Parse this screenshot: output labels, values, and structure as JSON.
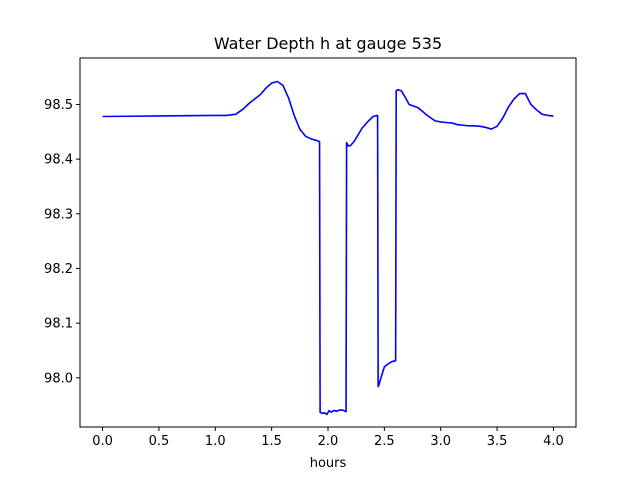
{
  "chart_data": {
    "type": "line",
    "title": "Water Depth h at gauge 535",
    "xlabel": "hours",
    "ylabel": "",
    "xlim": [
      -0.2,
      4.2
    ],
    "ylim": [
      97.91,
      98.585
    ],
    "xticks": [
      0.0,
      0.5,
      1.0,
      1.5,
      2.0,
      2.5,
      3.0,
      3.5,
      4.0
    ],
    "xtick_labels": [
      "0.0",
      "0.5",
      "1.0",
      "1.5",
      "2.0",
      "2.5",
      "3.0",
      "3.5",
      "4.0"
    ],
    "yticks": [
      98.0,
      98.1,
      98.2,
      98.3,
      98.4,
      98.5
    ],
    "ytick_labels": [
      "98.0",
      "98.1",
      "98.2",
      "98.3",
      "98.4",
      "98.5"
    ],
    "grid": false,
    "series": [
      {
        "color": "#0000ff",
        "x": [
          0.0,
          0.5,
          1.0,
          1.1,
          1.18,
          1.25,
          1.3,
          1.35,
          1.4,
          1.45,
          1.5,
          1.55,
          1.6,
          1.65,
          1.7,
          1.75,
          1.8,
          1.85,
          1.9,
          1.925,
          1.93,
          1.95,
          1.97,
          1.99,
          2.01,
          2.03,
          2.05,
          2.08,
          2.1,
          2.13,
          2.16,
          2.165,
          2.18,
          2.2,
          2.23,
          2.26,
          2.3,
          2.35,
          2.4,
          2.44,
          2.445,
          2.45,
          2.47,
          2.5,
          2.53,
          2.57,
          2.6,
          2.605,
          2.62,
          2.65,
          2.68,
          2.72,
          2.76,
          2.8,
          2.88,
          2.95,
          3.0,
          3.05,
          3.1,
          3.15,
          3.2,
          3.25,
          3.3,
          3.35,
          3.4,
          3.45,
          3.5,
          3.55,
          3.6,
          3.65,
          3.7,
          3.75,
          3.8,
          3.85,
          3.9,
          3.95,
          4.0
        ],
        "y": [
          98.478,
          98.479,
          98.48,
          98.48,
          98.482,
          98.492,
          98.502,
          98.51,
          98.518,
          98.53,
          98.539,
          98.542,
          98.535,
          98.512,
          98.48,
          98.455,
          98.442,
          98.437,
          98.434,
          98.432,
          97.937,
          97.935,
          97.936,
          97.933,
          97.94,
          97.937,
          97.94,
          97.939,
          97.941,
          97.941,
          97.938,
          98.43,
          98.424,
          98.425,
          98.432,
          98.442,
          98.456,
          98.468,
          98.478,
          98.48,
          97.984,
          97.986,
          98.0,
          98.02,
          98.025,
          98.03,
          98.031,
          98.525,
          98.527,
          98.525,
          98.515,
          98.5,
          98.497,
          98.494,
          98.48,
          98.47,
          98.468,
          98.467,
          98.466,
          98.463,
          98.462,
          98.461,
          98.461,
          98.46,
          98.458,
          98.455,
          98.46,
          98.475,
          98.495,
          98.51,
          98.52,
          98.52,
          98.5,
          98.49,
          98.482,
          98.48,
          98.479
        ]
      }
    ]
  }
}
